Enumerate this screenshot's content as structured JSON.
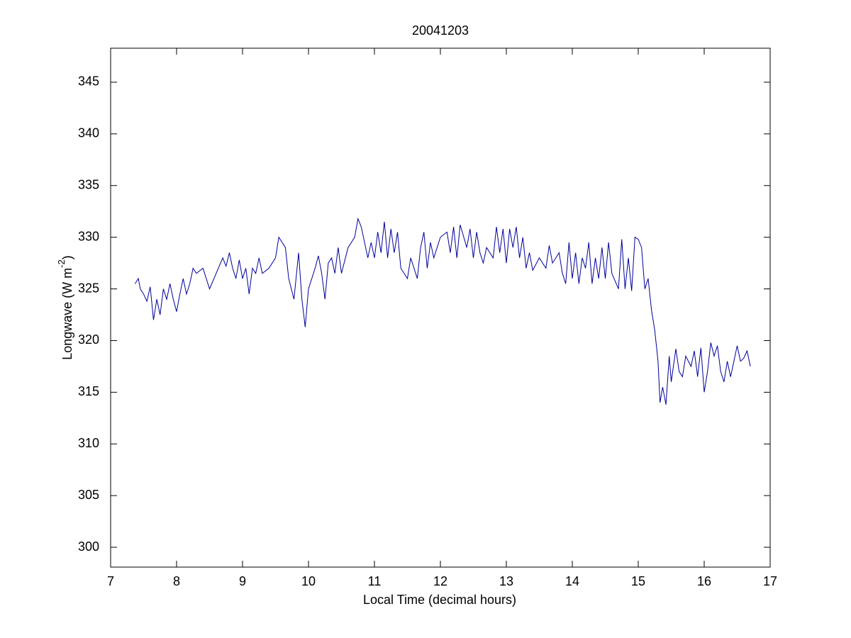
{
  "chart_data": {
    "type": "line",
    "title": "20041203",
    "xlabel": "Local Time (decimal hours)",
    "ylabel": [
      "Longwave (W m",
      "-2",
      ")"
    ],
    "xlim": [
      7,
      17
    ],
    "xticks": [
      7,
      8,
      9,
      10,
      11,
      12,
      13,
      14,
      15,
      16,
      17
    ],
    "ylim": [
      298.08,
      348.29
    ],
    "yticks": [
      300,
      305,
      310,
      315,
      320,
      325,
      330,
      335,
      340,
      345
    ],
    "grid": false,
    "series": [
      {
        "color": "#000099",
        "x": [
          7.37,
          7.42,
          7.45,
          7.5,
          7.55,
          7.6,
          7.65,
          7.7,
          7.75,
          7.8,
          7.85,
          7.9,
          7.95,
          8.0,
          8.05,
          8.1,
          8.15,
          8.2,
          8.25,
          8.3,
          8.4,
          8.5,
          8.6,
          8.7,
          8.75,
          8.8,
          8.85,
          8.9,
          8.95,
          9.0,
          9.05,
          9.1,
          9.15,
          9.2,
          9.25,
          9.3,
          9.4,
          9.5,
          9.55,
          9.65,
          9.7,
          9.78,
          9.85,
          9.9,
          9.95,
          10.0,
          10.1,
          10.15,
          10.2,
          10.25,
          10.3,
          10.35,
          10.4,
          10.45,
          10.5,
          10.6,
          10.7,
          10.75,
          10.8,
          10.9,
          10.95,
          11.0,
          11.05,
          11.1,
          11.15,
          11.2,
          11.25,
          11.3,
          11.35,
          11.4,
          11.5,
          11.55,
          11.6,
          11.65,
          11.7,
          11.75,
          11.8,
          11.85,
          11.9,
          12.0,
          12.1,
          12.15,
          12.2,
          12.25,
          12.3,
          12.4,
          12.45,
          12.5,
          12.55,
          12.6,
          12.65,
          12.7,
          12.8,
          12.85,
          12.9,
          12.95,
          13.0,
          13.05,
          13.1,
          13.15,
          13.2,
          13.25,
          13.3,
          13.35,
          13.4,
          13.5,
          13.6,
          13.65,
          13.7,
          13.8,
          13.85,
          13.9,
          13.95,
          14.0,
          14.05,
          14.1,
          14.15,
          14.2,
          14.25,
          14.3,
          14.35,
          14.4,
          14.45,
          14.5,
          14.55,
          14.6,
          14.7,
          14.75,
          14.8,
          14.85,
          14.9,
          14.95,
          15.0,
          15.05,
          15.1,
          15.15,
          15.2,
          15.25,
          15.3,
          15.33,
          15.37,
          15.42,
          15.47,
          15.5,
          15.57,
          15.62,
          15.67,
          15.72,
          15.8,
          15.85,
          15.9,
          15.95,
          16.0,
          16.05,
          16.1,
          16.15,
          16.2,
          16.25,
          16.3,
          16.35,
          16.4,
          16.45,
          16.5,
          16.55,
          16.6,
          16.65,
          16.7
        ],
        "values": [
          325.5,
          326,
          325,
          324.5,
          323.8,
          325.2,
          322,
          324,
          322.5,
          325,
          324,
          325.5,
          324,
          322.8,
          324.5,
          326,
          324.5,
          325.5,
          327,
          326.5,
          327,
          325,
          326.5,
          328,
          327.2,
          328.5,
          327,
          326,
          327.8,
          326,
          327,
          324.5,
          327,
          326.5,
          328,
          326.5,
          327,
          328,
          330,
          329,
          326,
          324,
          328.5,
          324,
          321.3,
          325,
          327,
          328.2,
          326.5,
          324,
          327.5,
          328,
          326.5,
          329,
          326.5,
          329,
          330,
          331.8,
          331,
          328,
          329.5,
          328,
          330.5,
          328.5,
          331.5,
          328,
          330.8,
          328.5,
          330.5,
          327,
          326,
          328,
          327,
          326,
          329,
          330.5,
          327,
          329.5,
          328,
          330,
          330.5,
          328.5,
          331,
          328,
          331.2,
          329,
          330.8,
          328,
          330.5,
          328.5,
          327.5,
          329,
          328,
          331,
          328.5,
          330.8,
          327.5,
          330.8,
          329,
          331,
          328,
          330,
          327,
          328.5,
          326.8,
          328,
          327,
          329.2,
          327.5,
          328.5,
          326.5,
          325.5,
          329.5,
          326,
          328.5,
          325.5,
          328,
          327,
          329.5,
          325.5,
          328,
          326,
          329,
          326,
          329.5,
          326.5,
          325,
          329.8,
          325,
          328,
          324.8,
          330,
          329.8,
          329,
          325,
          326,
          323,
          321,
          318,
          314,
          315.5,
          313.8,
          318.5,
          316,
          319.2,
          317,
          316.5,
          318.5,
          317.5,
          319,
          316.5,
          319.3,
          315,
          317,
          319.8,
          318.5,
          319.5,
          317,
          316,
          318,
          316.5,
          318,
          319.5,
          318,
          318.3,
          319,
          317.5
        ]
      }
    ]
  }
}
